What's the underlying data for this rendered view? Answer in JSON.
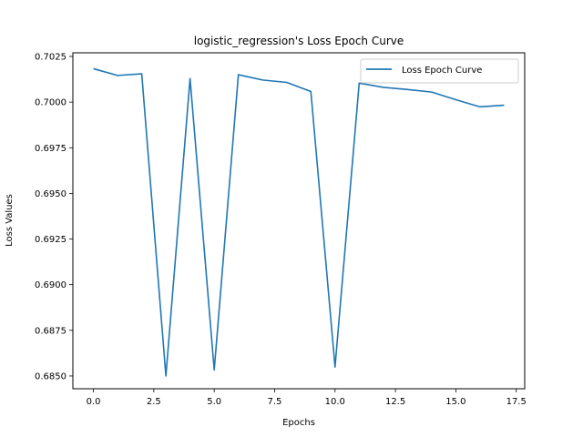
{
  "chart_data": {
    "type": "line",
    "title": "logistic_regression's Loss Epoch Curve",
    "xlabel": "Epochs",
    "ylabel": "Loss Values",
    "xlim": [
      -0.85,
      17.85
    ],
    "ylim": [
      0.6843,
      0.7027
    ],
    "xticks": [
      0.0,
      2.5,
      5.0,
      7.5,
      10.0,
      12.5,
      15.0,
      17.5
    ],
    "xtick_labels": [
      "0.0",
      "2.5",
      "5.0",
      "7.5",
      "10.0",
      "12.5",
      "15.0",
      "17.5"
    ],
    "yticks": [
      0.685,
      0.6875,
      0.69,
      0.6925,
      0.695,
      0.6975,
      0.7,
      0.7025
    ],
    "ytick_labels": [
      "0.6850",
      "0.6875",
      "0.6900",
      "0.6925",
      "0.6950",
      "0.6975",
      "0.7000",
      "0.7025"
    ],
    "grid": false,
    "legend_position": "top-right",
    "series": [
      {
        "name": "Loss Epoch Curve",
        "color": "#1f77b4",
        "x": [
          0,
          1,
          2,
          3,
          4,
          5,
          6,
          7,
          8,
          9,
          10,
          11,
          12,
          13,
          14,
          15,
          16,
          17
        ],
        "values": [
          0.70183,
          0.70146,
          0.70155,
          0.685,
          0.70129,
          0.68533,
          0.7015,
          0.70121,
          0.70108,
          0.70058,
          0.68549,
          0.70104,
          0.70081,
          0.70069,
          0.70055,
          0.70013,
          0.69974,
          0.69983
        ]
      }
    ]
  }
}
